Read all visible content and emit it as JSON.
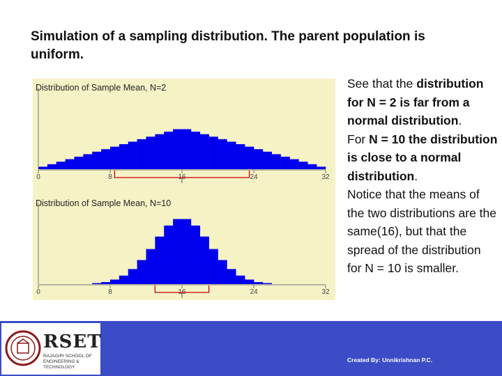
{
  "slide": {
    "title": "Simulation of a sampling distribution. The parent population is uniform.",
    "description": {
      "p1_a": "See that the ",
      "p1_b": "distribution for N = 2 is far from a normal distribution",
      "p1_c": ".",
      "p2_a": "For ",
      "p2_b": "N = 10 the distribution is close to a normal distribution",
      "p2_c": ".",
      "p3": "Notice that the means of the two distributions are the same(16), but that the spread of the distribution for N = 10 is smaller."
    }
  },
  "footer": {
    "logo_text": "RSET",
    "logo_subtext": "Rajagiri School of Engineering & Technology",
    "credit": "Created By: Unnikrishnan P.C."
  },
  "colors": {
    "bars": "#0000ee",
    "panel_bg": "#f5f2c6",
    "bracket": "#cc0000",
    "footer": "#3b4cc6"
  },
  "chart_data": [
    {
      "type": "bar",
      "title": "Distribution of Sample Mean, N=2",
      "xlim": [
        0,
        32
      ],
      "xticks": [
        "0",
        "8",
        "16",
        "24",
        "32"
      ],
      "ylim": [
        0,
        0.16
      ],
      "x": [
        0.5,
        1.5,
        2.5,
        3.5,
        4.5,
        5.5,
        6.5,
        7.5,
        8.5,
        9.5,
        10.5,
        11.5,
        12.5,
        13.5,
        14.5,
        15.5,
        16.5,
        17.5,
        18.5,
        19.5,
        20.5,
        21.5,
        22.5,
        23.5,
        24.5,
        25.5,
        26.5,
        27.5,
        28.5,
        29.5,
        30.5,
        31.5
      ],
      "values": [
        0.005,
        0.01,
        0.015,
        0.02,
        0.025,
        0.03,
        0.035,
        0.04,
        0.045,
        0.05,
        0.055,
        0.06,
        0.065,
        0.07,
        0.075,
        0.08,
        0.08,
        0.075,
        0.07,
        0.065,
        0.06,
        0.055,
        0.05,
        0.045,
        0.04,
        0.035,
        0.03,
        0.025,
        0.02,
        0.015,
        0.01,
        0.005
      ],
      "mean": 16,
      "spread": [
        8.5,
        23.5
      ]
    },
    {
      "type": "bar",
      "title": "Distribution of Sample Mean, N=10",
      "xlim": [
        0,
        32
      ],
      "xticks": [
        "0",
        "8",
        "16",
        "24",
        "32"
      ],
      "ylim": [
        0,
        0.16
      ],
      "x": [
        0.5,
        1.5,
        2.5,
        3.5,
        4.5,
        5.5,
        6.5,
        7.5,
        8.5,
        9.5,
        10.5,
        11.5,
        12.5,
        13.5,
        14.5,
        15.5,
        16.5,
        17.5,
        18.5,
        19.5,
        20.5,
        21.5,
        22.5,
        23.5,
        24.5,
        25.5,
        26.5,
        27.5,
        28.5,
        29.5,
        30.5,
        31.5
      ],
      "values": [
        0,
        0,
        0,
        0,
        0,
        0,
        0.002,
        0.004,
        0.009,
        0.017,
        0.03,
        0.048,
        0.07,
        0.095,
        0.117,
        0.13,
        0.13,
        0.117,
        0.095,
        0.07,
        0.048,
        0.03,
        0.017,
        0.009,
        0.004,
        0.002,
        0,
        0,
        0,
        0,
        0,
        0
      ],
      "mean": 16,
      "spread": [
        13,
        19
      ]
    }
  ]
}
